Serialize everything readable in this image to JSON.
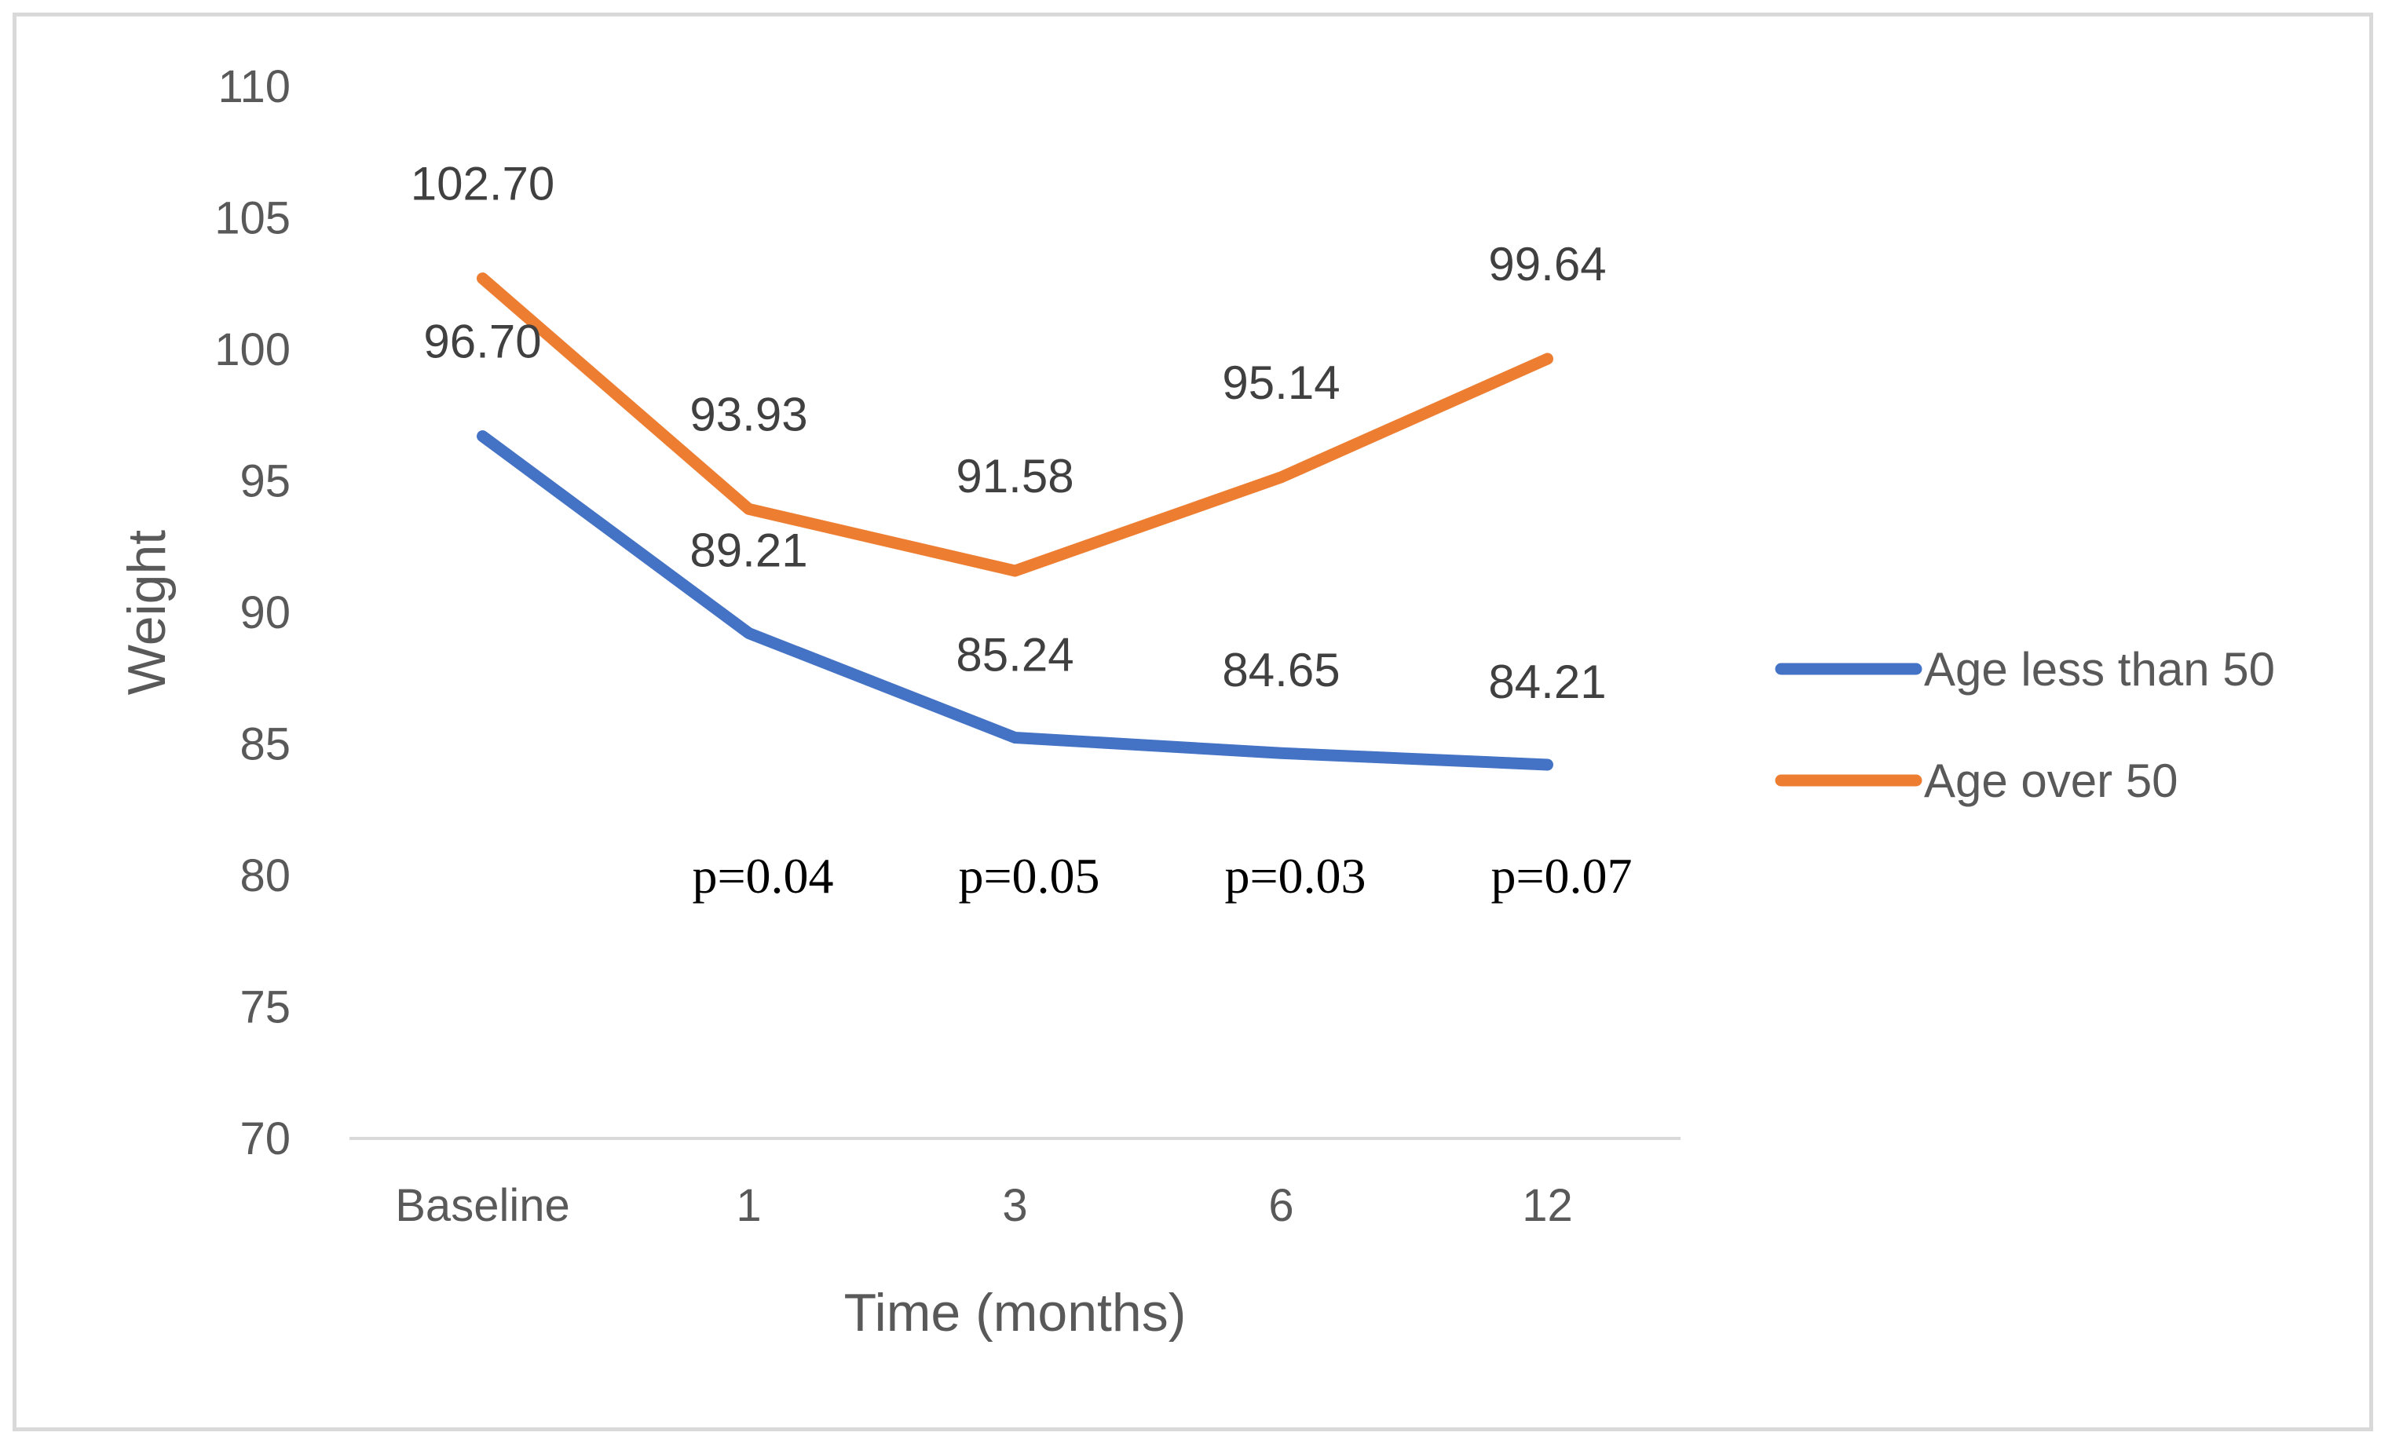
{
  "chart_data": {
    "type": "line",
    "title": "",
    "xlabel": "Time (months)",
    "ylabel": "Weight",
    "categories": [
      "Baseline",
      "1",
      "3",
      "6",
      "12"
    ],
    "ylim": [
      70,
      110
    ],
    "yticks": [
      70,
      75,
      80,
      85,
      90,
      95,
      100,
      105,
      110
    ],
    "grid": false,
    "legend_position": "right",
    "series": [
      {
        "name": "Age less than 50",
        "color": "#4472C4",
        "values": [
          96.7,
          89.21,
          85.24,
          84.65,
          84.21
        ],
        "labels": [
          "96.70",
          "89.21",
          "85.24",
          "84.65",
          "84.21"
        ]
      },
      {
        "name": "Age over 50",
        "color": "#ED7D31",
        "values": [
          102.7,
          93.93,
          91.58,
          95.14,
          99.64
        ],
        "labels": [
          "102.70",
          "93.93",
          "91.58",
          "95.14",
          "99.64"
        ]
      }
    ],
    "annotations": [
      {
        "category": "1",
        "value": 80,
        "text": "p=0.04"
      },
      {
        "category": "3",
        "value": 80,
        "text": "p=0.05"
      },
      {
        "category": "6",
        "value": 80,
        "text": "p=0.03"
      },
      {
        "category": "12",
        "value": 80,
        "text": "p=0.07"
      }
    ]
  }
}
